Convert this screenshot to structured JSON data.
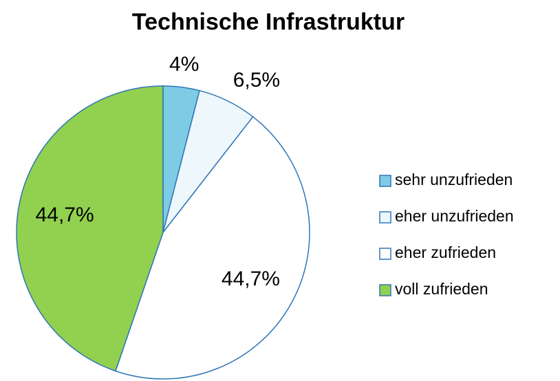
{
  "chart_data": {
    "type": "pie",
    "title": "Technische Infrastruktur",
    "categories": [
      "sehr unzufrieden",
      "eher unzufrieden",
      "eher zufrieden",
      "voll zufrieden"
    ],
    "values": [
      4,
      6.5,
      44.7,
      44.7
    ],
    "value_labels": [
      "4%",
      "6,5%",
      "44,7%",
      "44,7%"
    ],
    "colors": [
      "#7ecbe6",
      "#eef7fb",
      "#ffffff",
      "#92d050"
    ],
    "legend": "right"
  }
}
